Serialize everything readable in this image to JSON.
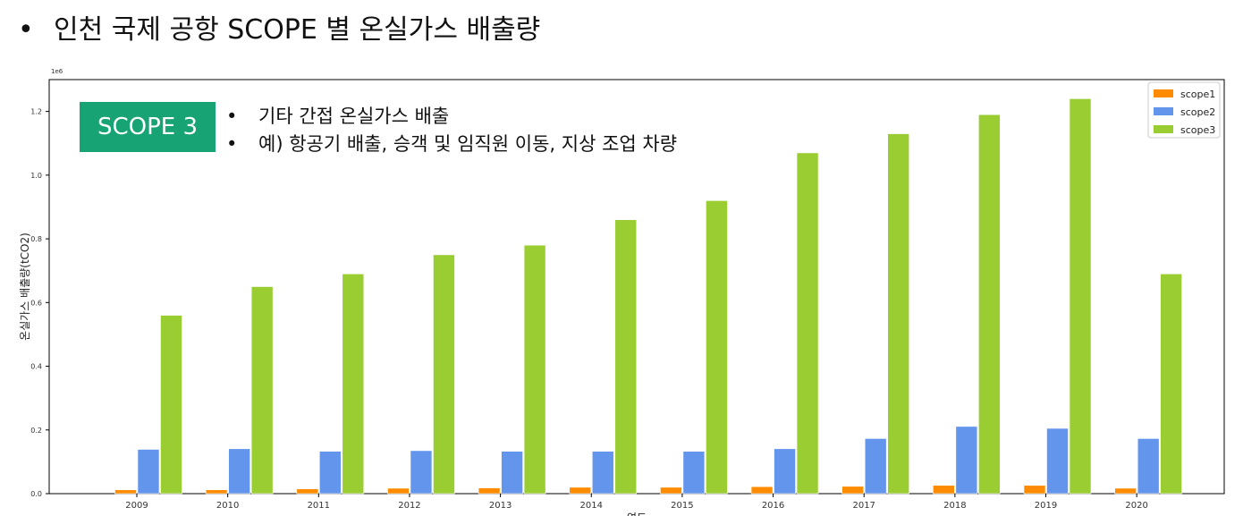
{
  "slide": {
    "bullet": "•",
    "title": "인천 국제 공항 SCOPE 별 온실가스 배출량"
  },
  "callout": {
    "badge": "SCOPE 3",
    "bullet": "•",
    "lines": [
      "기타 간접 온실가스 배출",
      "예) 항공기 배출, 승객 및 임직원 이동, 지상 조업 차량"
    ]
  },
  "chart_data": {
    "type": "bar",
    "title": "",
    "xlabel": "연도",
    "ylabel": "온실가스 배출량(tCO2)",
    "y_multiplier_label": "1e6",
    "categories": [
      "2009",
      "2010",
      "2011",
      "2012",
      "2013",
      "2014",
      "2015",
      "2016",
      "2017",
      "2018",
      "2019",
      "2020"
    ],
    "series": [
      {
        "name": "scope1",
        "color": "#ff8c00",
        "values": [
          0.012,
          0.012,
          0.015,
          0.017,
          0.018,
          0.02,
          0.02,
          0.022,
          0.023,
          0.026,
          0.026,
          0.017
        ]
      },
      {
        "name": "scope2",
        "color": "#6495ed",
        "values": [
          0.139,
          0.141,
          0.133,
          0.135,
          0.133,
          0.133,
          0.133,
          0.141,
          0.173,
          0.211,
          0.205,
          0.173
        ]
      },
      {
        "name": "scope3",
        "color": "#9acd32",
        "values": [
          0.56,
          0.65,
          0.69,
          0.75,
          0.78,
          0.86,
          0.92,
          1.07,
          1.13,
          1.19,
          1.24,
          0.69
        ]
      }
    ],
    "yticks": [
      "0.0",
      "0.2",
      "0.4",
      "0.6",
      "0.8",
      "1.0",
      "1.2"
    ],
    "ylim": [
      0,
      1.3
    ],
    "legend_position": "top-right",
    "grid": false
  }
}
